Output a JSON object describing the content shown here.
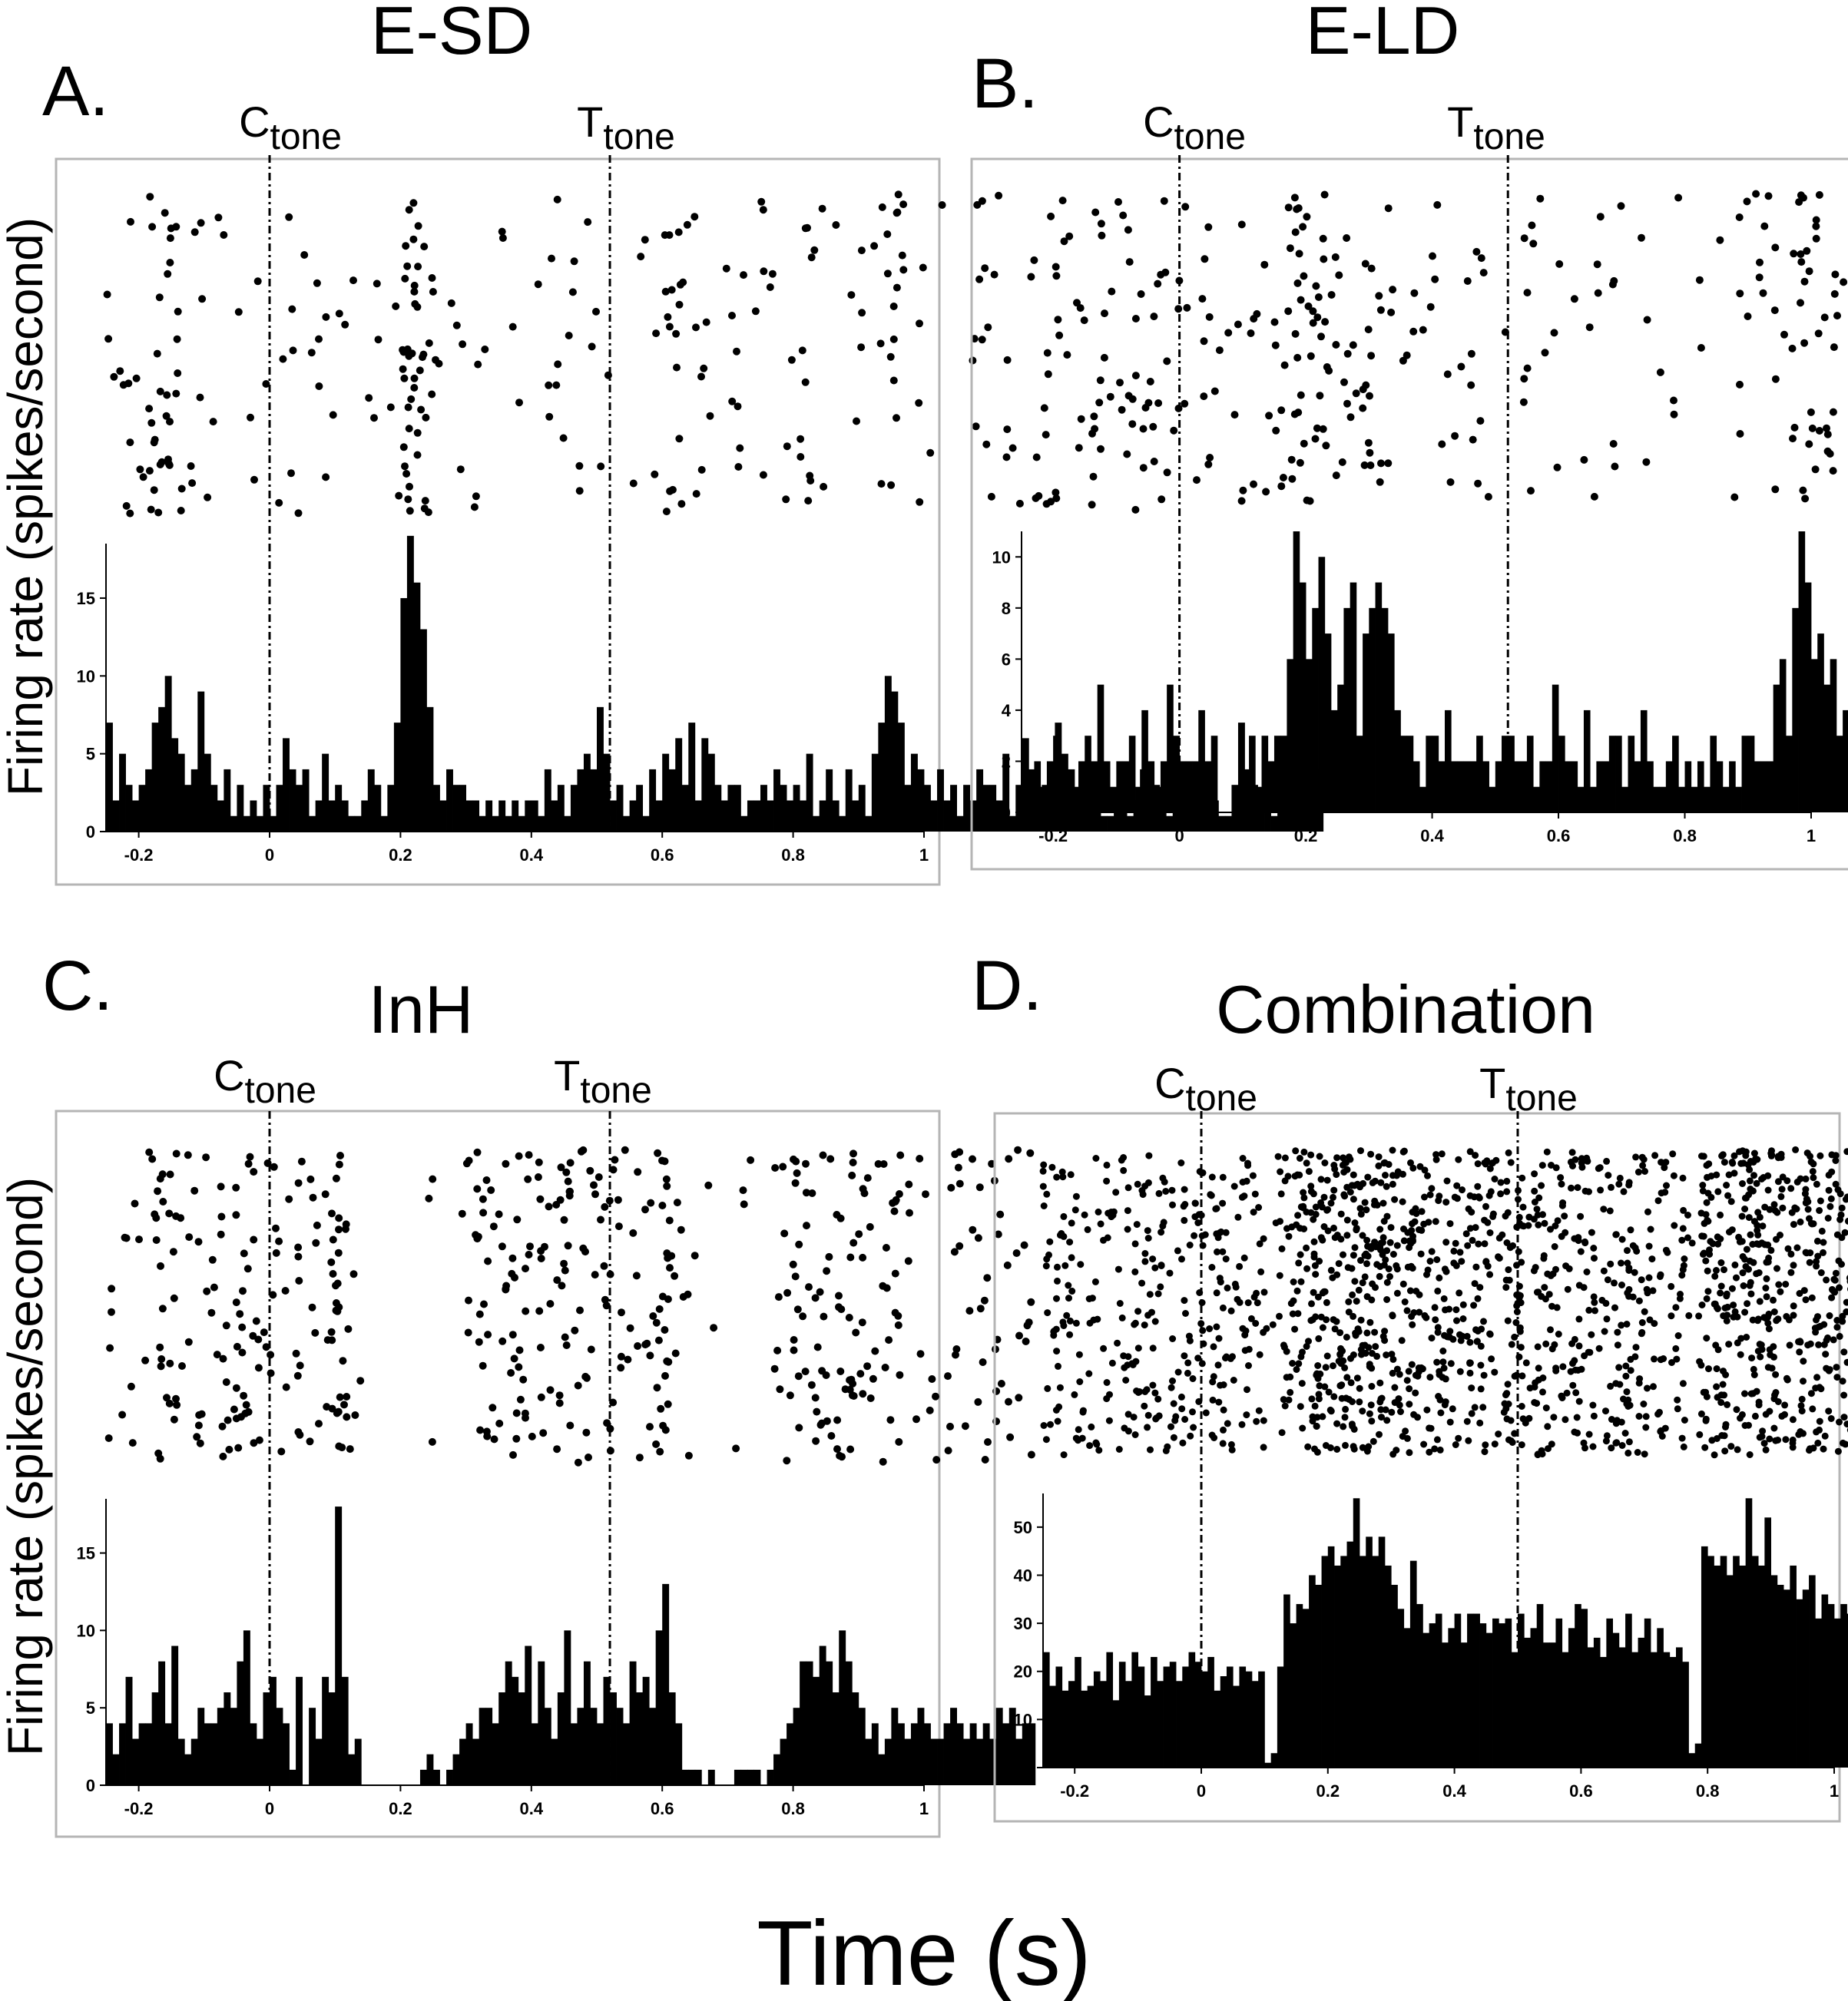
{
  "figure": {
    "ylabel": "Firing rate (spikes/second)",
    "xlabel": "Time (s)"
  },
  "chart_data": [
    {
      "type": "bar",
      "panel": "A.",
      "title": "E-SD",
      "cues": [
        {
          "label": "C",
          "sub": "tone",
          "t": 0
        },
        {
          "label": "T",
          "sub": "tone",
          "t": 0.52
        }
      ],
      "xlim": [
        -0.25,
        1.0
      ],
      "ylim": [
        0,
        18.5
      ],
      "xticks": [
        "-0.2",
        "0",
        "0.2",
        "0.4",
        "0.6",
        "0.8",
        "1"
      ],
      "yticks": [
        "0",
        "5",
        "10",
        "15"
      ],
      "bin_width": 0.01,
      "x_start": -0.25,
      "values": [
        7,
        2,
        5,
        3,
        2,
        3,
        4,
        7,
        8,
        10,
        6,
        5,
        3,
        4,
        9,
        5,
        3,
        2,
        4,
        1,
        3,
        1,
        2,
        1,
        3,
        1,
        3,
        6,
        4,
        3,
        4,
        1,
        2,
        5,
        2,
        3,
        2,
        1,
        1,
        2,
        4,
        3,
        1,
        3,
        7,
        15,
        19,
        16,
        13,
        8,
        3,
        2,
        4,
        3,
        3,
        2,
        2,
        1,
        2,
        1,
        2,
        1,
        2,
        1,
        2,
        2,
        1,
        4,
        2,
        3,
        1,
        3,
        4,
        5,
        4,
        8,
        5,
        2,
        3,
        1,
        2,
        3,
        1,
        4,
        2,
        5,
        4,
        6,
        3,
        7,
        2,
        6,
        5,
        3,
        2,
        3,
        3,
        1,
        2,
        2,
        3,
        2,
        4,
        3,
        2,
        3,
        2,
        5,
        1,
        2,
        4,
        2,
        1,
        4,
        2,
        3,
        1,
        5,
        7,
        10,
        9,
        7,
        3,
        5,
        4,
        3,
        2,
        4,
        2,
        3,
        1,
        3,
        2,
        4,
        3,
        3,
        2,
        5,
        1,
        3,
        6,
        4,
        2,
        3,
        2,
        7,
        5,
        4,
        2,
        4,
        3,
        2,
        1,
        1,
        2,
        3,
        1,
        2,
        4,
        2,
        3,
        2,
        1,
        5,
        3,
        2,
        4,
        2,
        3,
        2,
        1,
        1,
        3,
        7,
        4,
        3,
        2,
        3,
        1,
        5,
        2,
        4,
        3,
        2,
        8,
        4
      ]
    },
    {
      "type": "bar",
      "panel": "B.",
      "title": "E-LD",
      "cues": [
        {
          "label": "C",
          "sub": "tone",
          "t": 0
        },
        {
          "label": "T",
          "sub": "tone",
          "t": 0.52
        }
      ],
      "xlim": [
        -0.25,
        1.0
      ],
      "ylim": [
        0,
        11
      ],
      "xticks": [
        "-0.2",
        "0",
        "0.2",
        "0.4",
        "0.6",
        "0.8",
        "1"
      ],
      "yticks": [
        "0",
        "2",
        "4",
        "6",
        "8",
        "10"
      ],
      "bin_width": 0.01,
      "x_start": -0.25,
      "values": [
        1,
        1,
        2,
        1,
        2,
        3,
        2,
        1,
        1,
        2,
        3,
        2,
        5,
        2,
        1,
        2,
        2,
        3,
        1,
        4,
        2,
        1,
        2,
        5,
        3,
        2,
        2,
        2,
        4,
        2,
        3,
        0,
        0,
        0,
        0,
        0,
        3,
        1,
        3,
        2,
        3,
        3,
        6,
        11,
        9,
        6,
        8,
        10,
        7,
        4,
        5,
        8,
        9,
        3,
        7,
        8,
        9,
        8,
        7,
        4,
        3,
        3,
        2,
        1,
        3,
        3,
        2,
        4,
        2,
        2,
        2,
        2,
        3,
        2,
        1,
        2,
        3,
        3,
        2,
        2,
        3,
        1,
        2,
        2,
        5,
        3,
        2,
        2,
        1,
        4,
        1,
        2,
        2,
        3,
        3,
        1,
        3,
        2,
        4,
        2,
        1,
        1,
        2,
        3,
        1,
        2,
        1,
        2,
        1,
        3,
        2,
        1,
        2,
        1,
        3,
        3,
        2,
        2,
        2,
        5,
        6,
        3,
        8,
        11,
        9,
        6,
        7,
        5,
        6,
        3,
        4,
        3,
        2,
        3,
        2,
        3,
        2,
        1,
        3,
        4,
        2,
        2,
        2,
        3,
        1,
        3,
        2,
        3,
        3,
        5,
        2,
        4,
        1,
        2,
        3,
        2,
        1,
        2,
        5,
        3,
        2,
        1,
        1,
        2,
        3,
        1,
        3,
        2,
        1,
        2,
        2,
        2,
        1,
        3,
        2,
        3,
        3,
        2,
        1,
        5,
        2,
        1,
        2,
        1,
        1,
        3,
        1,
        2,
        1,
        3,
        2,
        1,
        1,
        2,
        1,
        3
      ]
    },
    {
      "type": "bar",
      "panel": "C.",
      "title": "InH",
      "cues": [
        {
          "label": "C",
          "sub": "tone",
          "t": 0
        },
        {
          "label": "T",
          "sub": "tone",
          "t": 0.52
        }
      ],
      "xlim": [
        -0.25,
        1.0
      ],
      "ylim": [
        0,
        18.5
      ],
      "xticks": [
        "-0.2",
        "0",
        "0.2",
        "0.4",
        "0.6",
        "0.8",
        "1"
      ],
      "yticks": [
        "0",
        "5",
        "10",
        "15"
      ],
      "bin_width": 0.01,
      "x_start": -0.25,
      "values": [
        4,
        2,
        4,
        7,
        3,
        4,
        4,
        6,
        8,
        4,
        9,
        3,
        2,
        3,
        5,
        4,
        4,
        5,
        6,
        5,
        8,
        10,
        4,
        3,
        6,
        7,
        5,
        4,
        1,
        7,
        0,
        5,
        3,
        7,
        6,
        18,
        7,
        2,
        3,
        0,
        0,
        0,
        0,
        0,
        0,
        0,
        0,
        0,
        1,
        2,
        1,
        0,
        1,
        2,
        3,
        4,
        3,
        5,
        5,
        4,
        6,
        8,
        7,
        6,
        9,
        4,
        8,
        5,
        3,
        6,
        10,
        4,
        5,
        8,
        5,
        4,
        7,
        6,
        5,
        4,
        8,
        6,
        7,
        5,
        10,
        13,
        6,
        4,
        1,
        1,
        1,
        0,
        1,
        0,
        0,
        0,
        1,
        1,
        1,
        1,
        0,
        1,
        2,
        3,
        4,
        5,
        8,
        8,
        7,
        9,
        8,
        6,
        10,
        8,
        6,
        5,
        3,
        4,
        2,
        3,
        5,
        4,
        3,
        4,
        5,
        4,
        3,
        3,
        4,
        5,
        4,
        3,
        4,
        3,
        4,
        3,
        5,
        4,
        5,
        3,
        4,
        4
      ]
    },
    {
      "type": "bar",
      "panel": "D.",
      "title": "Combination",
      "cues": [
        {
          "label": "C",
          "sub": "tone",
          "t": 0
        },
        {
          "label": "T",
          "sub": "tone",
          "t": 0.5
        }
      ],
      "xlim": [
        -0.25,
        1.0
      ],
      "ylim": [
        0,
        57
      ],
      "xticks": [
        "-0.2",
        "0",
        "0.2",
        "0.4",
        "0.6",
        "0.8",
        "1"
      ],
      "yticks": [
        "0",
        "10",
        "20",
        "30",
        "40",
        "50"
      ],
      "bin_width": 0.01,
      "x_start": -0.25,
      "values": [
        24,
        17,
        21,
        16,
        18,
        23,
        16,
        17,
        20,
        18,
        24,
        14,
        22,
        18,
        24,
        21,
        15,
        23,
        18,
        21,
        22,
        18,
        21,
        24,
        22,
        20,
        23,
        16,
        19,
        21,
        17,
        21,
        20,
        18,
        20,
        1,
        3,
        21,
        36,
        30,
        34,
        33,
        40,
        38,
        44,
        46,
        42,
        44,
        47,
        56,
        44,
        48,
        44,
        48,
        42,
        38,
        33,
        29,
        43,
        34,
        28,
        30,
        32,
        26,
        29,
        32,
        26,
        32,
        32,
        30,
        28,
        31,
        30,
        31,
        24,
        32,
        27,
        29,
        34,
        26,
        26,
        31,
        24,
        29,
        34,
        33,
        25,
        27,
        23,
        31,
        28,
        25,
        32,
        24,
        27,
        31,
        24,
        29,
        24,
        23,
        25,
        22,
        3,
        5,
        46,
        44,
        42,
        44,
        40,
        44,
        42,
        56,
        44,
        42,
        52,
        40,
        38,
        37,
        42,
        35,
        37,
        40,
        31,
        36,
        34,
        31,
        34,
        32,
        32,
        34,
        30,
        28,
        36,
        26,
        30,
        28,
        27,
        32,
        25,
        33,
        26,
        31,
        27,
        29,
        24,
        35,
        25,
        25,
        31,
        20,
        30,
        23,
        19,
        20,
        28,
        32,
        25,
        28,
        22,
        26,
        32,
        28,
        34,
        27,
        27,
        34,
        23,
        25,
        27,
        22,
        28,
        33,
        24,
        29,
        19,
        30
      ]
    }
  ]
}
